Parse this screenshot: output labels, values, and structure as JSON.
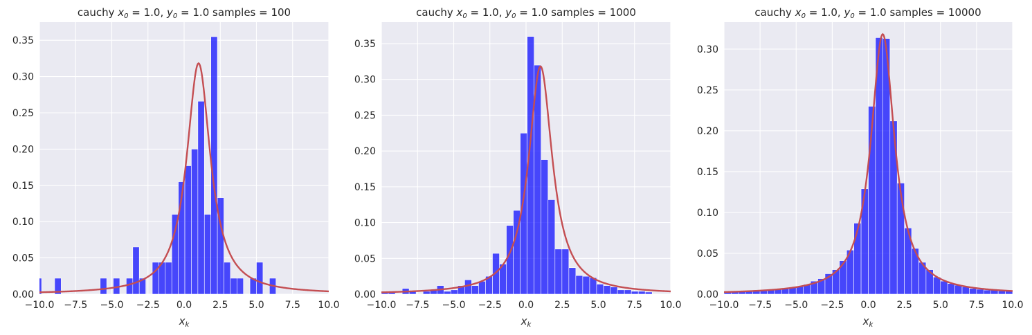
{
  "colors": {
    "background": "#eaeaf2",
    "bars": "#0000ff",
    "curve": "#c44e52",
    "grid": "#ffffff"
  },
  "chart_data": [
    {
      "type": "bar",
      "title_prefix": "cauchy ",
      "title_x0": "x",
      "title_x0_sub": "0",
      "title_x0_val": " = 1.0, ",
      "title_y0": "y",
      "title_y0_sub": "0",
      "title_y0_val": " = 1.0  samples = 100",
      "xlabel": "x",
      "xlabel_sub": "k",
      "xlim": [
        -10,
        10
      ],
      "ylim": [
        0,
        0.375
      ],
      "grid": true,
      "xticks": [
        "−10.0",
        "−7.5",
        "−5.0",
        "−2.5",
        "0.0",
        "2.5",
        "5.0",
        "7.5",
        "10.0"
      ],
      "xtick_values": [
        -10,
        -7.5,
        -5,
        -2.5,
        0,
        2.5,
        5,
        7.5,
        10
      ],
      "yticks": [
        "0.00",
        "0.05",
        "0.10",
        "0.15",
        "0.20",
        "0.25",
        "0.30",
        "0.35"
      ],
      "ytick_values": [
        0,
        0.05,
        0.1,
        0.15,
        0.2,
        0.25,
        0.3,
        0.35
      ],
      "bin_start": -10.3,
      "bin_width": 0.45,
      "values": [
        0.022,
        0,
        0,
        0.022,
        0,
        0,
        0,
        0,
        0,
        0,
        0.022,
        0,
        0.022,
        0,
        0.022,
        0.065,
        0.022,
        0,
        0.044,
        0.044,
        0.044,
        0.11,
        0.155,
        0.177,
        0.2,
        0.266,
        0.11,
        0.355,
        0.133,
        0.044,
        0.022,
        0.022,
        0,
        0.022,
        0.044,
        0,
        0.022
      ],
      "curve": {
        "x0": 1.0,
        "gamma": 1.0
      }
    },
    {
      "type": "bar",
      "title_prefix": "cauchy ",
      "title_x0": "x",
      "title_x0_sub": "0",
      "title_x0_val": " = 1.0, ",
      "title_y0": "y",
      "title_y0_sub": "0",
      "title_y0_val": " = 1.0  samples = 1000",
      "xlabel": "x",
      "xlabel_sub": "k",
      "xlim": [
        -10,
        10
      ],
      "ylim": [
        0,
        0.38
      ],
      "grid": true,
      "xticks": [
        "−10.0",
        "−7.5",
        "−5.0",
        "−2.5",
        "0.0",
        "2.5",
        "5.0",
        "7.5",
        "10.0"
      ],
      "xtick_values": [
        -10,
        -7.5,
        -5,
        -2.5,
        0,
        2.5,
        5,
        7.5,
        10
      ],
      "yticks": [
        "0.00",
        "0.05",
        "0.10",
        "0.15",
        "0.20",
        "0.25",
        "0.30",
        "0.35"
      ],
      "ytick_values": [
        0,
        0.05,
        0.1,
        0.15,
        0.2,
        0.25,
        0.3,
        0.35
      ],
      "bin_start": -10.0,
      "bin_width": 0.48,
      "values": [
        0.004,
        0.004,
        0,
        0.008,
        0.004,
        0,
        0.004,
        0.006,
        0.012,
        0.004,
        0.006,
        0.012,
        0.02,
        0.012,
        0.018,
        0.025,
        0.057,
        0.042,
        0.096,
        0.117,
        0.225,
        0.36,
        0.32,
        0.188,
        0.132,
        0.063,
        0.063,
        0.037,
        0.026,
        0.025,
        0.023,
        0.014,
        0.012,
        0.01,
        0.006,
        0.006,
        0.004,
        0.004,
        0.003
      ],
      "curve": {
        "x0": 1.0,
        "gamma": 1.0
      }
    },
    {
      "type": "bar",
      "title_prefix": "cauchy ",
      "title_x0": "x",
      "title_x0_sub": "0",
      "title_x0_val": " = 1.0, ",
      "title_y0": "y",
      "title_y0_sub": "0",
      "title_y0_val": " = 1.0  samples = 10000",
      "xlabel": "x",
      "xlabel_sub": "k",
      "xlim": [
        -10,
        10
      ],
      "ylim": [
        0,
        0.333
      ],
      "grid": true,
      "xticks": [
        "−10.0",
        "−7.5",
        "−5.0",
        "−2.5",
        "0.0",
        "2.5",
        "5.0",
        "7.5",
        "10.0"
      ],
      "xtick_values": [
        -10,
        -7.5,
        -5,
        -2.5,
        0,
        2.5,
        5,
        7.5,
        10
      ],
      "yticks": [
        "0.00",
        "0.05",
        "0.10",
        "0.15",
        "0.20",
        "0.25",
        "0.30"
      ],
      "ytick_values": [
        0,
        0.05,
        0.1,
        0.15,
        0.2,
        0.25,
        0.3
      ],
      "bin_start": -10.0,
      "bin_width": 0.5,
      "values": [
        0.003,
        0.003,
        0.003,
        0.004,
        0.004,
        0.004,
        0.005,
        0.006,
        0.007,
        0.008,
        0.01,
        0.012,
        0.016,
        0.019,
        0.025,
        0.03,
        0.041,
        0.054,
        0.087,
        0.129,
        0.23,
        0.314,
        0.313,
        0.212,
        0.136,
        0.081,
        0.056,
        0.039,
        0.03,
        0.021,
        0.016,
        0.013,
        0.011,
        0.009,
        0.007,
        0.006,
        0.005,
        0.005,
        0.004,
        0.004
      ],
      "curve": {
        "x0": 1.0,
        "gamma": 1.0
      }
    }
  ]
}
